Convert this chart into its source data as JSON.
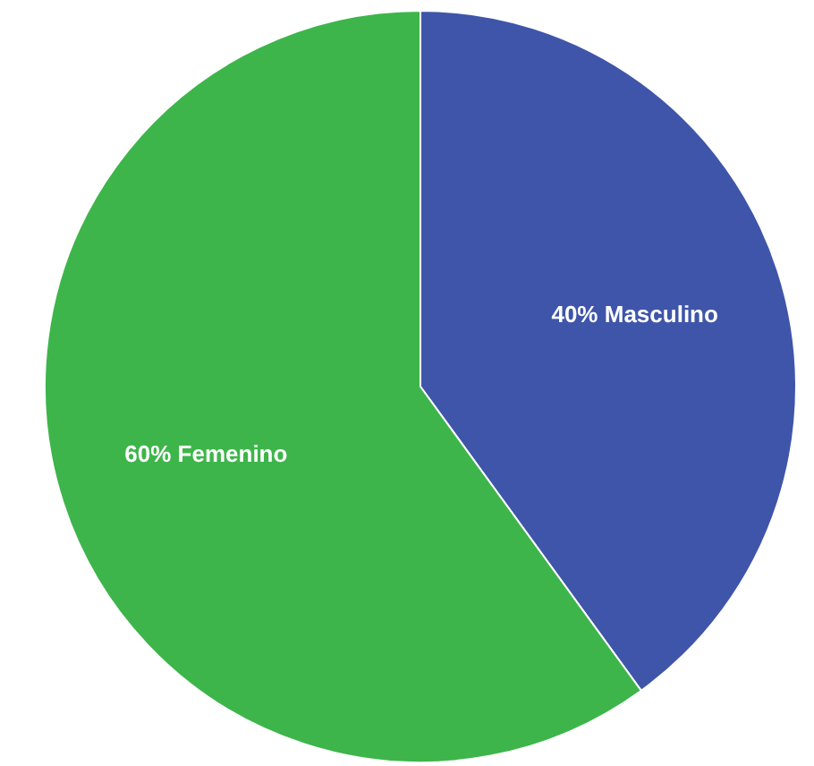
{
  "chart_data": {
    "type": "pie",
    "categories": [
      "Masculino",
      "Femenino"
    ],
    "values": [
      40,
      60
    ],
    "colors": [
      "#3f55a9",
      "#3db54a"
    ],
    "value_labels": [
      "40%",
      "60%"
    ],
    "legend": false
  }
}
